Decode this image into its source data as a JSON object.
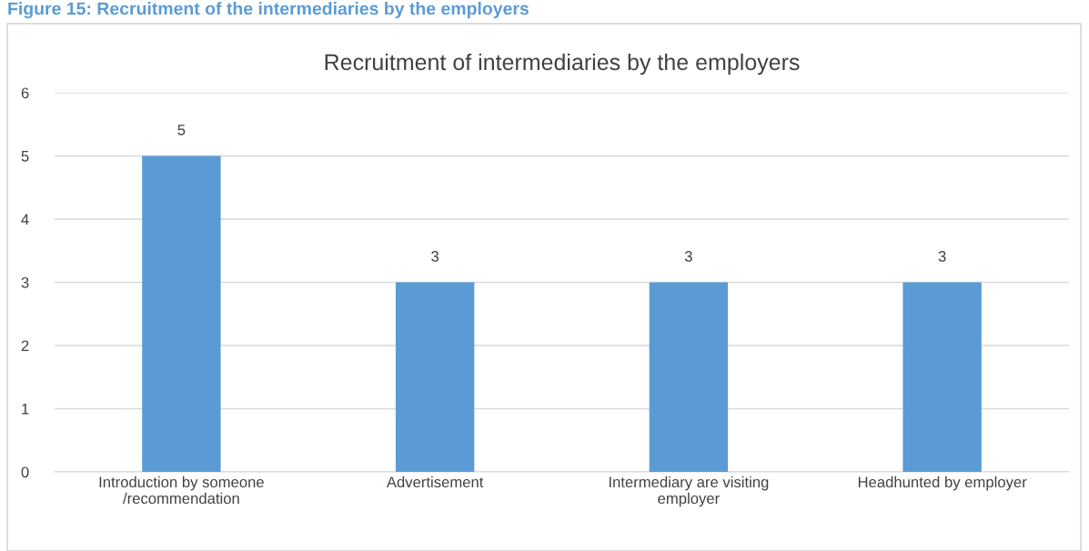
{
  "chart_data": {
    "type": "bar",
    "title": "Recruitment of intermediaries by the employers",
    "annotations": [
      "Figure 15: Recruitment of the intermediaries by the employers"
    ],
    "categories": [
      "Introduction by someone\n/recommendation",
      "Advertisement",
      "Intermediary are visiting\nemployer",
      "Headhunted by employer"
    ],
    "values": [
      5,
      3,
      3,
      3
    ],
    "color": "#5b9bd5",
    "ylim": [
      0,
      6
    ],
    "yticks": [
      0,
      1,
      2,
      3,
      4,
      5,
      6
    ],
    "grid": "y",
    "data_labels": true
  }
}
